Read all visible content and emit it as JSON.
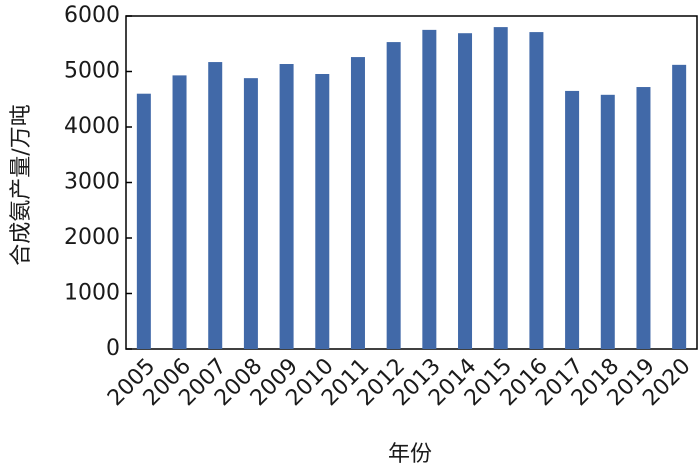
{
  "chart_data": {
    "type": "bar",
    "x_label": "年份",
    "y_label": "合成氨产量/万吨",
    "categories": [
      "2005",
      "2006",
      "2007",
      "2008",
      "2009",
      "2010",
      "2011",
      "2012",
      "2013",
      "2014",
      "2015",
      "2016",
      "2017",
      "2018",
      "2019",
      "2020"
    ],
    "values": [
      4600,
      4930,
      5170,
      4880,
      5135,
      4955,
      5260,
      5530,
      5750,
      5690,
      5800,
      5710,
      4650,
      4580,
      4720,
      5120
    ],
    "color": "#4169a8",
    "ylim": [
      0,
      6000
    ],
    "yticks": [
      0,
      1000,
      2000,
      3000,
      4000,
      5000,
      6000
    ],
    "grid": false
  }
}
